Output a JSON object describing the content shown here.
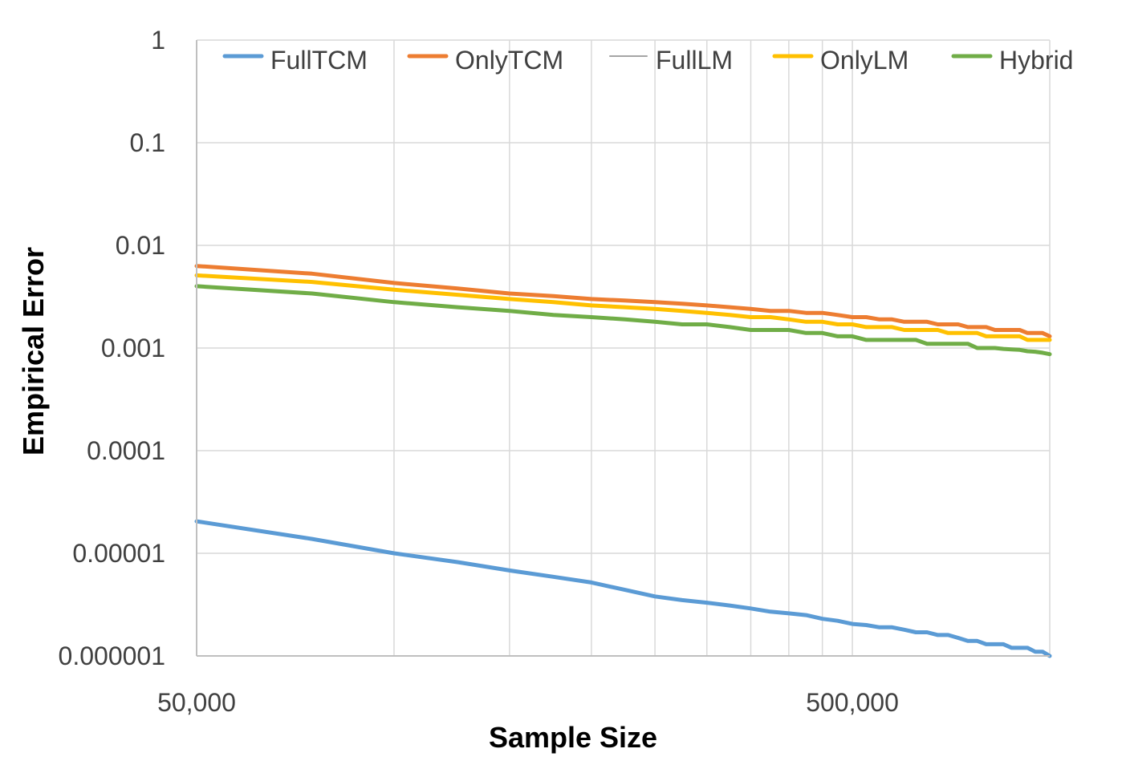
{
  "chart_data": {
    "type": "line",
    "xlabel": "Sample Size",
    "ylabel": "Empirical Error",
    "x_scale": "log",
    "y_scale": "log",
    "xlim": [
      50000,
      1000000
    ],
    "ylim": [
      1e-06,
      1
    ],
    "grid": true,
    "legend_position": "top",
    "x_ticks": [
      {
        "value": 50000,
        "label": "50,000"
      },
      {
        "value": 500000,
        "label": "500,000"
      }
    ],
    "x_minor_grid": [
      100000,
      150000,
      200000,
      250000,
      300000,
      350000,
      400000,
      450000,
      500000
    ],
    "y_ticks": [
      {
        "value": 1,
        "label": "1"
      },
      {
        "value": 0.1,
        "label": "0.1"
      },
      {
        "value": 0.01,
        "label": "0.01"
      },
      {
        "value": 0.001,
        "label": "0.001"
      },
      {
        "value": 0.0001,
        "label": "0.0001"
      },
      {
        "value": 1e-05,
        "label": "0.00001"
      },
      {
        "value": 1e-06,
        "label": "0.000001"
      }
    ],
    "x": [
      50000,
      75000,
      100000,
      125000,
      150000,
      175000,
      200000,
      225000,
      250000,
      275000,
      300000,
      325000,
      350000,
      375000,
      400000,
      425000,
      450000,
      475000,
      500000,
      525000,
      550000,
      575000,
      600000,
      625000,
      650000,
      675000,
      700000,
      725000,
      750000,
      775000,
      800000,
      825000,
      850000,
      875000,
      900000,
      925000,
      950000,
      975000,
      1000000
    ],
    "series": [
      {
        "name": "FullTCM",
        "color": "#5B9BD5",
        "values": [
          2.05e-05,
          1.38e-05,
          1e-05,
          8.2e-06,
          6.8e-06,
          5.9e-06,
          5.2e-06,
          4.4e-06,
          3.8e-06,
          3.5e-06,
          3.3e-06,
          3.1e-06,
          2.9e-06,
          2.7e-06,
          2.6e-06,
          2.5e-06,
          2.3e-06,
          2.2e-06,
          2.05e-06,
          2e-06,
          1.9e-06,
          1.9e-06,
          1.8e-06,
          1.7e-06,
          1.7e-06,
          1.6e-06,
          1.6e-06,
          1.5e-06,
          1.4e-06,
          1.4e-06,
          1.3e-06,
          1.3e-06,
          1.3e-06,
          1.2e-06,
          1.2e-06,
          1.2e-06,
          1.1e-06,
          1.1e-06,
          1e-06
        ]
      },
      {
        "name": "OnlyTCM",
        "color": "#ED7D31",
        "values": [
          0.0063,
          0.0053,
          0.0043,
          0.0038,
          0.0034,
          0.0032,
          0.003,
          0.0029,
          0.0028,
          0.0027,
          0.0026,
          0.0025,
          0.0024,
          0.0023,
          0.0023,
          0.0022,
          0.0022,
          0.0021,
          0.002,
          0.002,
          0.0019,
          0.0019,
          0.0018,
          0.0018,
          0.0018,
          0.0017,
          0.0017,
          0.0017,
          0.0016,
          0.0016,
          0.0016,
          0.0015,
          0.0015,
          0.0015,
          0.0015,
          0.0014,
          0.0014,
          0.0014,
          0.0013
        ]
      },
      {
        "name": "FullLM",
        "color": "#A5A5A5",
        "values": [
          0.0051,
          0.0044,
          0.0037,
          0.0033,
          0.003,
          0.0028,
          0.0026,
          0.0025,
          0.0024,
          0.0023,
          0.0022,
          0.0021,
          0.002,
          0.002,
          0.0019,
          0.0018,
          0.0018,
          0.0017,
          0.0017,
          0.0016,
          0.0016,
          0.0016,
          0.0015,
          0.0015,
          0.0015,
          0.0015,
          0.0014,
          0.0014,
          0.0014,
          0.0014,
          0.0013,
          0.0013,
          0.0013,
          0.0013,
          0.0013,
          0.0012,
          0.0012,
          0.0012,
          0.0012
        ]
      },
      {
        "name": "OnlyLM",
        "color": "#FFC000",
        "values": [
          0.0051,
          0.0044,
          0.0037,
          0.0033,
          0.003,
          0.0028,
          0.0026,
          0.0025,
          0.0024,
          0.0023,
          0.0022,
          0.0021,
          0.002,
          0.002,
          0.0019,
          0.0018,
          0.0018,
          0.0017,
          0.0017,
          0.0016,
          0.0016,
          0.0016,
          0.0015,
          0.0015,
          0.0015,
          0.0015,
          0.0014,
          0.0014,
          0.0014,
          0.0014,
          0.0013,
          0.0013,
          0.0013,
          0.0013,
          0.0013,
          0.0012,
          0.0012,
          0.0012,
          0.0012
        ]
      },
      {
        "name": "Hybrid",
        "color": "#70AD47",
        "values": [
          0.004,
          0.0034,
          0.0028,
          0.0025,
          0.0023,
          0.0021,
          0.002,
          0.0019,
          0.0018,
          0.0017,
          0.0017,
          0.0016,
          0.0015,
          0.0015,
          0.0015,
          0.0014,
          0.0014,
          0.0013,
          0.0013,
          0.0012,
          0.0012,
          0.0012,
          0.0012,
          0.0012,
          0.0011,
          0.0011,
          0.0011,
          0.0011,
          0.0011,
          0.001,
          0.001,
          0.001,
          0.00098,
          0.00097,
          0.00096,
          0.00093,
          0.00092,
          0.0009,
          0.00087
        ]
      }
    ]
  }
}
